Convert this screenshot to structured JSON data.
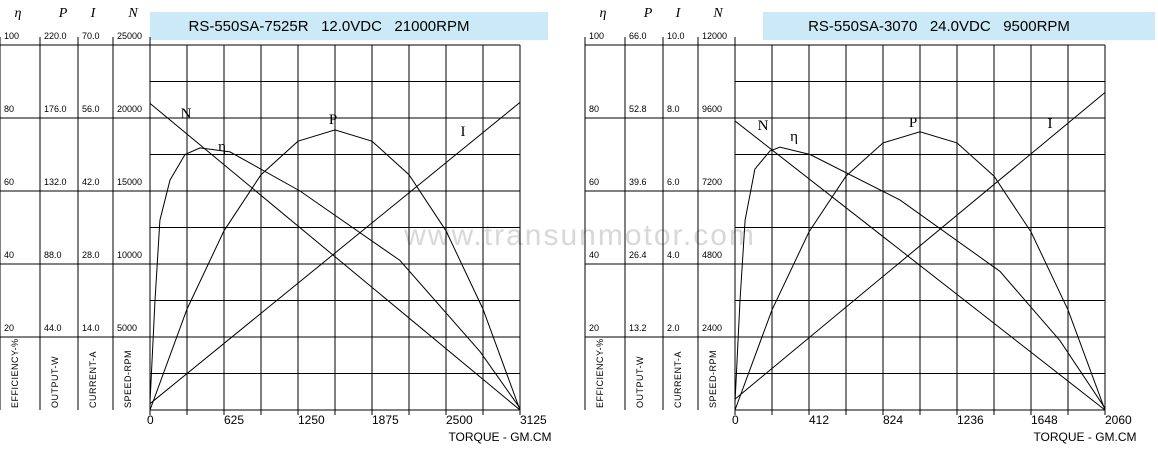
{
  "chart_data": [
    {
      "type": "line",
      "title": "RS-550SA-7525R   12.0VDC   21000RPM",
      "x_label": "TORQUE - GM.CM",
      "xlim": [
        0,
        3125
      ],
      "xticks": [
        0,
        625,
        1250,
        1875,
        2500,
        3125
      ],
      "axes": [
        {
          "symbol": "η",
          "label": "EFFICIENCY-%",
          "ylim": [
            0,
            100
          ],
          "yticks": [
            20,
            40,
            60,
            80,
            100
          ]
        },
        {
          "symbol": "P",
          "label": "OUTPUT-W",
          "ylim": [
            0,
            220
          ],
          "yticks": [
            {
              "value": 44,
              "label": "44.0"
            },
            {
              "value": 88,
              "label": "88.0"
            },
            {
              "value": 132,
              "label": "132.0"
            },
            {
              "value": 176,
              "label": "176.0"
            },
            {
              "value": 220,
              "label": "220.0"
            }
          ]
        },
        {
          "symbol": "I",
          "label": "CURRENT-A",
          "ylim": [
            0,
            70
          ],
          "yticks": [
            {
              "value": 14,
              "label": "14.0"
            },
            {
              "value": 28,
              "label": "28.0"
            },
            {
              "value": 42,
              "label": "42.0"
            },
            {
              "value": 56,
              "label": "56.0"
            },
            {
              "value": 70,
              "label": "70.0"
            }
          ]
        },
        {
          "symbol": "N",
          "label": "SPEED-RPM",
          "ylim": [
            0,
            25000
          ],
          "yticks": [
            5000,
            10000,
            15000,
            20000,
            25000
          ]
        }
      ],
      "series": [
        {
          "name": "N",
          "axis": 3,
          "x": [
            0,
            3125
          ],
          "values": [
            21000,
            0
          ]
        },
        {
          "name": "η",
          "axis": 0,
          "x": [
            0,
            42,
            84,
            169,
            296,
            422,
            676,
            1267,
            2111,
            2787,
            3125
          ],
          "values": [
            2,
            30,
            52,
            63,
            70,
            71.8,
            70.7,
            60,
            41,
            16,
            0.5
          ]
        },
        {
          "name": "P",
          "axis": 1,
          "x": [
            0,
            312.5,
            625,
            937.5,
            1250,
            1562.5,
            1875,
            2187.5,
            2500,
            2812.5,
            3125
          ],
          "values": [
            0,
            60.8,
            108,
            141.8,
            162,
            168.8,
            162,
            141.8,
            108,
            60.8,
            0
          ]
        },
        {
          "name": "I",
          "axis": 2,
          "x": [
            0,
            3125
          ],
          "values": [
            1.2,
            59
          ]
        }
      ],
      "watermark": "www.transunmotor.com"
    },
    {
      "type": "line",
      "title": "RS-550SA-3070   24.0VDC   9500RPM",
      "x_label": "TORQUE - GM.CM",
      "xlim": [
        0,
        2060
      ],
      "xticks": [
        0,
        412,
        824,
        1236,
        1648,
        2060
      ],
      "axes": [
        {
          "symbol": "η",
          "label": "EFFICIENCY-%",
          "ylim": [
            0,
            100
          ],
          "yticks": [
            20,
            40,
            60,
            80,
            100
          ]
        },
        {
          "symbol": "P",
          "label": "OUTPUT-W",
          "ylim": [
            0,
            66
          ],
          "yticks": [
            {
              "value": 13.2,
              "label": "13.2"
            },
            {
              "value": 26.4,
              "label": "26.4"
            },
            {
              "value": 39.6,
              "label": "39.6"
            },
            {
              "value": 52.8,
              "label": "52.8"
            },
            {
              "value": 66,
              "label": "66.0"
            }
          ]
        },
        {
          "symbol": "I",
          "label": "CURRENT-A",
          "ylim": [
            0,
            10
          ],
          "yticks": [
            {
              "value": 2,
              "label": "2.0"
            },
            {
              "value": 4,
              "label": "4.0"
            },
            {
              "value": 6,
              "label": "6.0"
            },
            {
              "value": 8,
              "label": "8.0"
            },
            {
              "value": 10,
              "label": "10.0"
            }
          ]
        },
        {
          "symbol": "N",
          "label": "SPEED-RPM",
          "ylim": [
            0,
            12000
          ],
          "yticks": [
            2400,
            4800,
            7200,
            9600,
            12000
          ]
        }
      ],
      "series": [
        {
          "name": "N",
          "axis": 3,
          "x": [
            0,
            2060
          ],
          "values": [
            9500,
            0
          ]
        },
        {
          "name": "η",
          "axis": 0,
          "x": [
            0,
            28,
            56,
            111,
            195,
            250,
            418,
            919,
            1475,
            1809,
            2060
          ],
          "values": [
            2,
            30,
            52,
            66,
            71,
            72,
            70,
            57.5,
            38,
            19,
            0.5
          ]
        },
        {
          "name": "P",
          "axis": 1,
          "x": [
            0,
            206,
            412,
            618,
            824,
            1030,
            1236,
            1442,
            1648,
            1854,
            2060
          ],
          "values": [
            0,
            18.1,
            32.2,
            42.3,
            48.3,
            50.3,
            48.3,
            42.3,
            32.2,
            18.1,
            0
          ]
        },
        {
          "name": "I",
          "axis": 2,
          "x": [
            0,
            2060
          ],
          "values": [
            0.3,
            8.7
          ]
        }
      ]
    }
  ]
}
